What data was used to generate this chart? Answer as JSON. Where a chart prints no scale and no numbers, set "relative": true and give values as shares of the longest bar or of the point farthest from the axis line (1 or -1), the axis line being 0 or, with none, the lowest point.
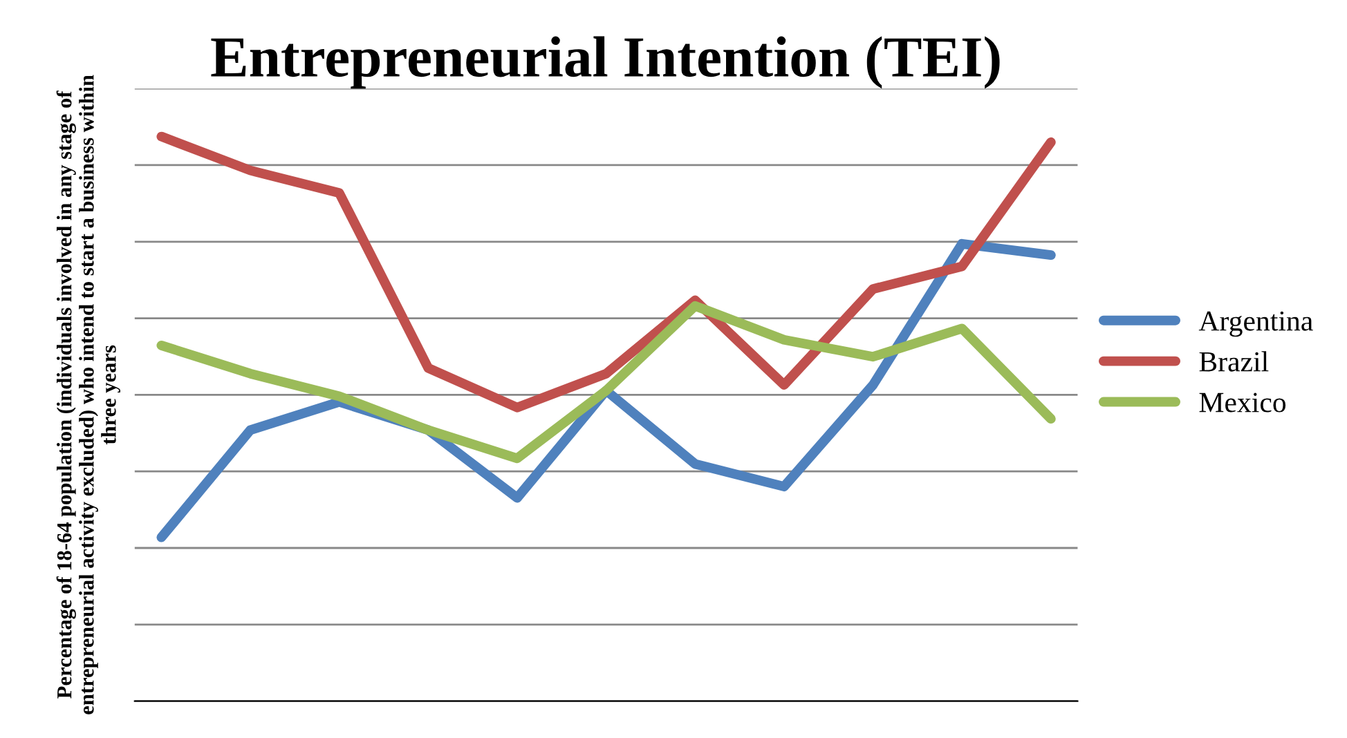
{
  "chart_data": {
    "type": "line",
    "title": "Entrepreneurial Intention (TEI)",
    "ylabel": "Percentage of 18-64 population (individuals involved in any stage of entrepreneurial activity excluded) who intend to start a business within three years",
    "categories": [
      null,
      null,
      null,
      null,
      null,
      null,
      null,
      null,
      null,
      null,
      null
    ],
    "relative": true,
    "grid": "y",
    "legend": "right",
    "marker": "none",
    "line_style": "solid",
    "series": [
      {
        "name": "Argentina",
        "color": "#4f81bd",
        "values": [
          0.29,
          0.48,
          0.53,
          0.48,
          0.36,
          0.55,
          0.42,
          0.38,
          0.56,
          0.81,
          0.79
        ]
      },
      {
        "name": "Brazil",
        "color": "#c0504d",
        "values": [
          1.0,
          0.94,
          0.9,
          0.59,
          0.52,
          0.58,
          0.71,
          0.56,
          0.73,
          0.77,
          0.99
        ]
      },
      {
        "name": "Mexico",
        "color": "#9bbb59",
        "values": [
          0.63,
          0.58,
          0.54,
          0.48,
          0.43,
          0.55,
          0.7,
          0.64,
          0.61,
          0.66,
          0.5
        ]
      }
    ]
  }
}
